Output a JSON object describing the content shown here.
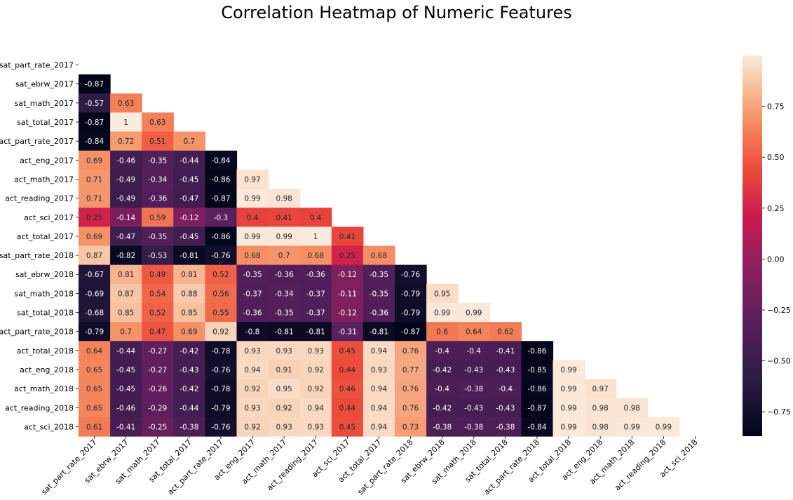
{
  "chart_data": {
    "type": "heatmap",
    "title": "Correlation Heatmap of Numeric Features",
    "xlabel": "",
    "ylabel": "",
    "labels": [
      "sat_part_rate_2017",
      "sat_ebrw_2017",
      "sat_math_2017",
      "sat_total_2017",
      "act_part_rate_2017",
      "act_eng_2017",
      "act_math_2017",
      "act_reading_2017",
      "act_sci_2017",
      "act_total_2017",
      "sat_part_rate_2018",
      "sat_ebrw_2018",
      "sat_math_2018",
      "sat_total_2018",
      "act_part_rate_2018",
      "act_total_2018",
      "act_eng_2018",
      "act_math_2018",
      "act_reading_2018",
      "act_sci_2018"
    ],
    "mask": "upper triangle including diagonal",
    "values": [
      [],
      [
        "-0.87"
      ],
      [
        "-0.57",
        "0.63"
      ],
      [
        "-0.87",
        "1",
        "0.63"
      ],
      [
        "-0.84",
        "0.72",
        "0.51",
        "0.7"
      ],
      [
        "0.69",
        "-0.46",
        "-0.35",
        "-0.44",
        "-0.84"
      ],
      [
        "0.71",
        "-0.49",
        "-0.34",
        "-0.45",
        "-0.86",
        "0.97"
      ],
      [
        "0.71",
        "-0.49",
        "-0.36",
        "-0.47",
        "-0.87",
        "0.99",
        "0.98"
      ],
      [
        "0.25",
        "-0.14",
        "0.59",
        "-0.12",
        "-0.3",
        "0.4",
        "0.41",
        "0.4"
      ],
      [
        "0.69",
        "-0.47",
        "-0.35",
        "-0.45",
        "-0.86",
        "0.99",
        "0.99",
        "1",
        "0.41"
      ],
      [
        "0.87",
        "-0.82",
        "-0.53",
        "-0.81",
        "-0.76",
        "0.68",
        "0.7",
        "0.68",
        "0.25",
        "0.68"
      ],
      [
        "-0.67",
        "0.81",
        "0.49",
        "0.81",
        "0.52",
        "-0.35",
        "-0.36",
        "-0.36",
        "-0.12",
        "-0.35",
        "-0.76"
      ],
      [
        "-0.69",
        "0.87",
        "0.54",
        "0.88",
        "0.56",
        "-0.37",
        "-0.34",
        "-0.37",
        "-0.11",
        "-0.35",
        "-0.79",
        "0.95"
      ],
      [
        "-0.68",
        "0.85",
        "0.52",
        "0.85",
        "0.55",
        "-0.36",
        "-0.35",
        "-0.37",
        "-0.12",
        "-0.36",
        "-0.79",
        "0.99",
        "0.99"
      ],
      [
        "-0.79",
        "0.7",
        "0.47",
        "0.69",
        "0.92",
        "-0.8",
        "-0.81",
        "-0.81",
        "-0.31",
        "-0.81",
        "-0.87",
        "0.6",
        "0.64",
        "0.62"
      ],
      [
        "0.64",
        "-0.44",
        "-0.27",
        "-0.42",
        "-0.78",
        "0.93",
        "0.93",
        "0.93",
        "0.45",
        "0.94",
        "0.76",
        "-0.4",
        "-0.4",
        "-0.41",
        "-0.86"
      ],
      [
        "0.65",
        "-0.45",
        "-0.27",
        "-0.43",
        "-0.76",
        "0.94",
        "0.91",
        "0.92",
        "0.44",
        "0.93",
        "0.77",
        "-0.42",
        "-0.43",
        "-0.43",
        "-0.85",
        "0.99"
      ],
      [
        "0.65",
        "-0.45",
        "-0.26",
        "-0.42",
        "-0.78",
        "0.92",
        "0.95",
        "0.92",
        "0.46",
        "0.94",
        "0.76",
        "-0.4",
        "-0.38",
        "-0.4",
        "-0.86",
        "0.99",
        "0.97"
      ],
      [
        "0.65",
        "-0.46",
        "-0.29",
        "-0.44",
        "-0.79",
        "0.93",
        "0.92",
        "0.94",
        "0.44",
        "0.94",
        "0.76",
        "-0.42",
        "-0.43",
        "-0.43",
        "-0.87",
        "0.99",
        "0.98",
        "0.98"
      ],
      [
        "0.61",
        "-0.41",
        "-0.25",
        "-0.38",
        "-0.76",
        "0.92",
        "0.93",
        "0.93",
        "0.45",
        "0.94",
        "0.73",
        "-0.38",
        "-0.38",
        "-0.38",
        "-0.84",
        "0.99",
        "0.98",
        "0.99",
        "0.99"
      ]
    ],
    "colorbar": {
      "range": [
        -0.87,
        1.0
      ],
      "ticks": [
        "0.75",
        "0.50",
        "0.25",
        "0.00",
        "−0.25",
        "−0.50",
        "−0.75"
      ],
      "tick_values": [
        0.75,
        0.5,
        0.25,
        0.0,
        -0.25,
        -0.5,
        -0.75
      ],
      "colormap": "rocket"
    },
    "grid": false
  }
}
